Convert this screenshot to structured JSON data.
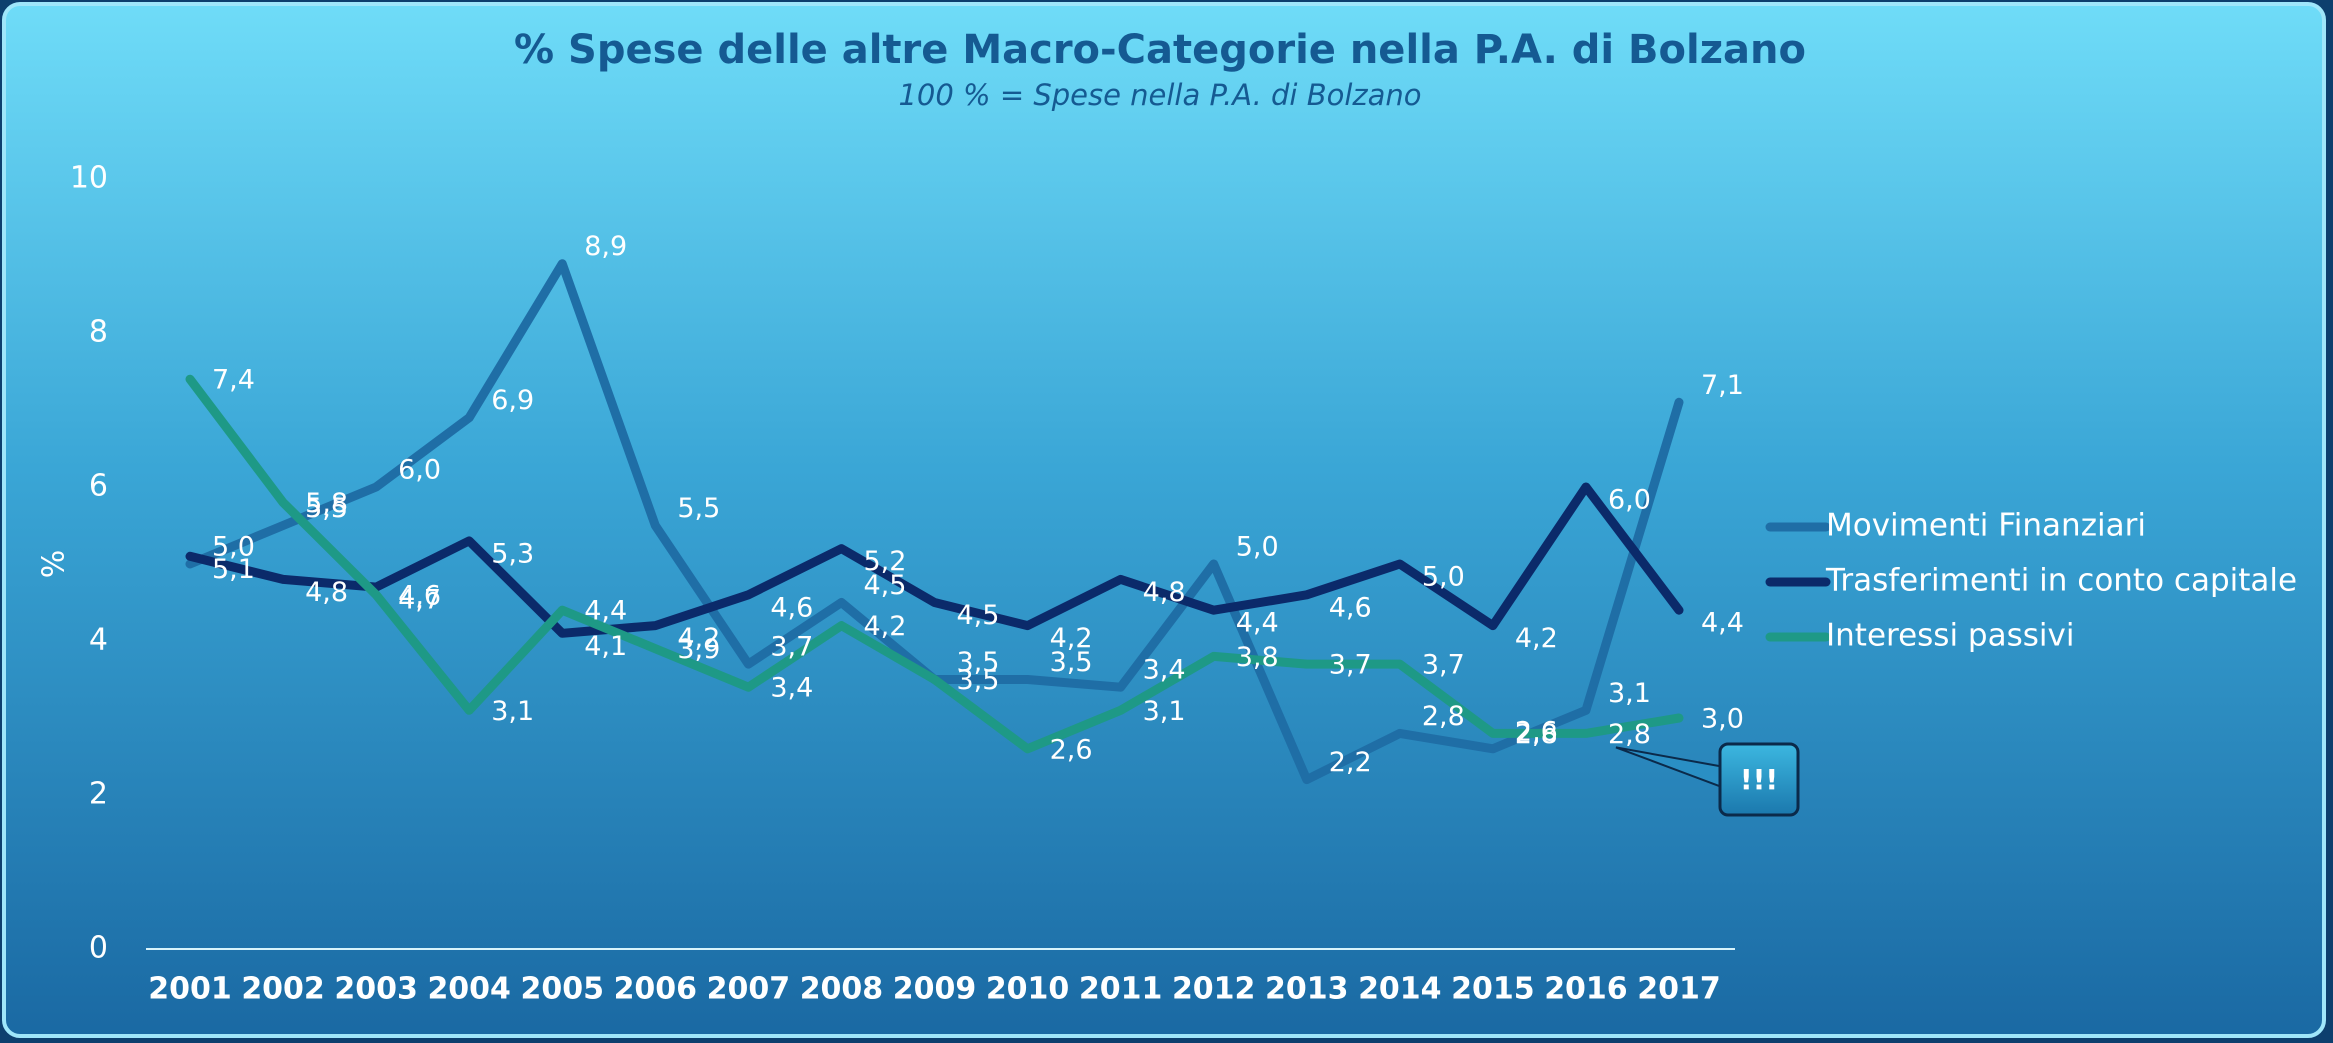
{
  "chart_data": {
    "type": "line",
    "title": "% Spese delle altre Macro-Categorie nella P.A. di Bolzano",
    "subtitle": "100 % = Spese nella P.A. di Bolzano",
    "y_label": "%",
    "annotation": "!!!",
    "categories": [
      "2001",
      "2002",
      "2003",
      "2004",
      "2005",
      "2006",
      "2007",
      "2008",
      "2009",
      "2010",
      "2011",
      "2012",
      "2013",
      "2014",
      "2015",
      "2016",
      "2017"
    ],
    "ylim": [
      0,
      10
    ],
    "yticks": [
      0,
      2,
      4,
      6,
      8,
      10
    ],
    "grid": false,
    "legend": "right",
    "series": [
      {
        "name": "Movimenti Finanziari",
        "color": "#1f6ea6",
        "values": [
          5.0,
          5.5,
          6.0,
          6.9,
          8.9,
          5.5,
          3.7,
          4.5,
          3.5,
          3.5,
          3.4,
          5.0,
          2.2,
          2.8,
          2.6,
          3.1,
          7.1
        ],
        "value_labels": [
          "5,0",
          "5,5",
          "6,0",
          "6,9",
          "8,9",
          "5,5",
          "3,7",
          "4,5",
          "3,5",
          "3,5",
          "3,4",
          "5,0",
          "2,2",
          "2,8",
          "2,6",
          "3,1",
          "7,1"
        ]
      },
      {
        "name": "Trasferimenti in conto capitale",
        "color": "#0b2a6a",
        "values": [
          5.1,
          4.8,
          4.7,
          5.3,
          4.1,
          4.2,
          4.6,
          5.2,
          4.5,
          4.2,
          4.8,
          4.4,
          4.6,
          5.0,
          4.2,
          6.0,
          4.4
        ],
        "value_labels": [
          "5,1",
          "4,8",
          "4,7",
          "5,3",
          "4,1",
          "4,2",
          "4,6",
          "5,2",
          "4,5",
          "4,2",
          "4,8",
          "4,4",
          "4,6",
          "5,0",
          "4,2",
          "6,0",
          "4,4"
        ]
      },
      {
        "name": "Interessi passivi",
        "color": "#1e9986",
        "values": [
          7.4,
          5.8,
          4.6,
          3.1,
          4.4,
          3.9,
          3.4,
          4.2,
          3.5,
          2.6,
          3.1,
          3.8,
          3.7,
          3.7,
          2.8,
          2.8,
          3.0
        ],
        "value_labels": [
          "7,4",
          "5,8",
          "4,6",
          "3,1",
          "4,4",
          "3,9",
          "3,4",
          "4,2",
          "3,5",
          "2,6",
          "3,1",
          "3,8",
          "3,7",
          "3,7",
          "2,8",
          "2,8",
          "3,0"
        ]
      }
    ]
  }
}
